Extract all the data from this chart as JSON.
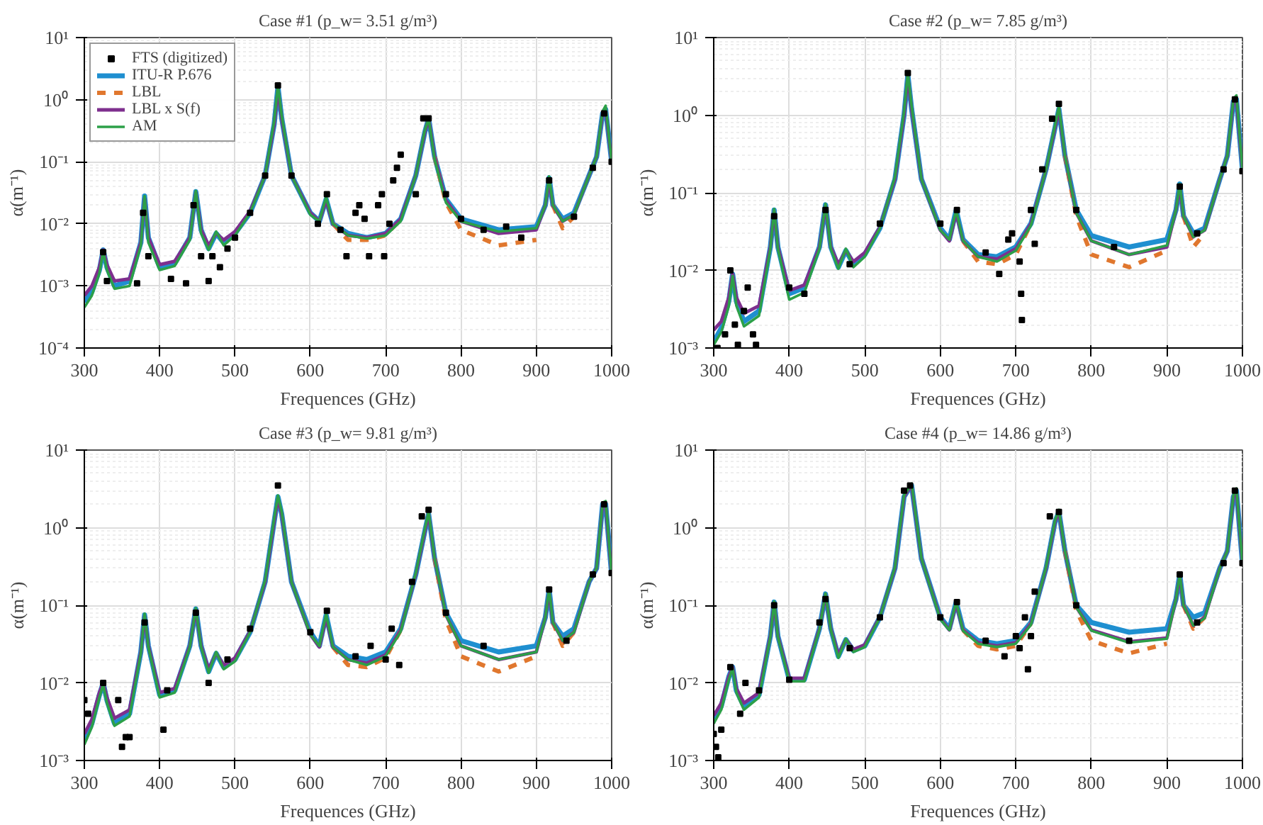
{
  "chart_data": [
    {
      "type": "line",
      "title": "Case #1 (p_w= 3.51 g/m³)",
      "xlabel": "Frequences (GHz)",
      "ylabel": "α(m⁻¹)",
      "log": "y",
      "grid": true,
      "legend": "top left",
      "xlim": [
        300,
        1000
      ],
      "xticks": [
        300,
        400,
        500,
        600,
        700,
        800,
        900,
        1000
      ],
      "ylim": [
        0.0001,
        10
      ],
      "yticks": [
        {
          "value": 0.0001,
          "label": "10⁻⁴"
        },
        {
          "value": 0.001,
          "label": "10⁻³"
        },
        {
          "value": 0.01,
          "label": "10⁻²"
        },
        {
          "value": 0.1,
          "label": "10⁻¹"
        },
        {
          "value": 1,
          "label": "10⁰"
        },
        {
          "value": 10,
          "label": "10¹"
        }
      ],
      "x": [
        300,
        310,
        320,
        325,
        330,
        340,
        360,
        375,
        380,
        385,
        400,
        420,
        440,
        448,
        455,
        465,
        475,
        485,
        500,
        520,
        540,
        552,
        557,
        562,
        575,
        600,
        612,
        621,
        630,
        650,
        675,
        700,
        720,
        740,
        752,
        757,
        765,
        780,
        800,
        850,
        900,
        912,
        917,
        922,
        935,
        950,
        970,
        980,
        988,
        992,
        1000
      ],
      "series": [
        {
          "name": "FTS (digitized)",
          "type": "scatter",
          "marker": "square",
          "color": "#000000",
          "x": [
            325,
            330,
            370,
            378,
            385,
            415,
            435,
            445,
            455,
            465,
            470,
            480,
            490,
            500,
            520,
            540,
            557,
            575,
            610,
            622,
            640,
            648,
            660,
            665,
            672,
            678,
            690,
            695,
            698,
            705,
            710,
            715,
            720,
            740,
            750,
            757,
            780,
            800,
            830,
            860,
            880,
            917,
            950,
            975,
            990,
            1000
          ],
          "values": [
            0.0035,
            0.0012,
            0.0011,
            0.015,
            0.003,
            0.0013,
            0.0011,
            0.02,
            0.003,
            0.0012,
            0.003,
            0.002,
            0.004,
            0.006,
            0.015,
            0.06,
            1.7,
            0.06,
            0.01,
            0.03,
            0.008,
            0.003,
            0.015,
            0.02,
            0.012,
            0.003,
            0.02,
            0.03,
            0.003,
            0.01,
            0.05,
            0.08,
            0.13,
            0.03,
            0.5,
            0.5,
            0.03,
            0.012,
            0.008,
            0.009,
            0.006,
            0.05,
            0.013,
            0.08,
            0.6,
            0.1
          ]
        },
        {
          "name": "ITU-R P.676",
          "color": "#1f8fd0",
          "line_style": "solid",
          "values": [
            0.00055,
            0.0008,
            0.0018,
            0.0038,
            0.002,
            0.001,
            0.0012,
            0.005,
            0.028,
            0.006,
            0.002,
            0.0023,
            0.006,
            0.033,
            0.008,
            0.004,
            0.007,
            0.005,
            0.007,
            0.015,
            0.06,
            0.4,
            1.6,
            0.5,
            0.06,
            0.015,
            0.011,
            0.025,
            0.01,
            0.007,
            0.006,
            0.007,
            0.012,
            0.06,
            0.3,
            0.5,
            0.12,
            0.025,
            0.012,
            0.008,
            0.009,
            0.02,
            0.055,
            0.02,
            0.012,
            0.015,
            0.06,
            0.12,
            0.6,
            0.7,
            0.1
          ]
        },
        {
          "name": "LBL",
          "color": "#e0772e",
          "line_style": "dashed",
          "values": [
            null,
            null,
            null,
            null,
            null,
            null,
            null,
            null,
            null,
            null,
            null,
            null,
            null,
            null,
            null,
            null,
            null,
            null,
            null,
            null,
            null,
            null,
            null,
            null,
            null,
            null,
            null,
            null,
            0.01,
            0.0055,
            0.0055,
            0.0065,
            0.012,
            null,
            null,
            null,
            0.12,
            0.022,
            0.008,
            0.0045,
            0.0055,
            null,
            null,
            0.02,
            0.0085,
            0.013,
            null,
            null,
            null,
            null,
            null
          ]
        },
        {
          "name": "LBL x S(f)",
          "color": "#7e2f8e",
          "line_style": "solid",
          "values": [
            0.0007,
            0.001,
            0.002,
            0.0038,
            0.0022,
            0.0012,
            0.0013,
            0.005,
            0.026,
            0.006,
            0.0022,
            0.0025,
            0.006,
            0.032,
            0.008,
            0.0045,
            0.007,
            0.0055,
            0.0075,
            0.016,
            0.06,
            0.4,
            1.5,
            0.5,
            0.06,
            0.015,
            0.011,
            0.024,
            0.01,
            0.0065,
            0.006,
            0.007,
            0.012,
            0.06,
            0.3,
            0.5,
            0.12,
            0.024,
            0.011,
            0.007,
            0.008,
            0.02,
            0.05,
            0.02,
            0.011,
            0.014,
            0.06,
            0.12,
            0.6,
            0.7,
            0.1
          ]
        },
        {
          "name": "AM",
          "color": "#2ca048",
          "line_style": "solid",
          "values": [
            0.00045,
            0.0007,
            0.0016,
            0.0036,
            0.0018,
            0.0009,
            0.001,
            0.0045,
            0.028,
            0.005,
            0.0018,
            0.0021,
            0.0055,
            0.034,
            0.007,
            0.0038,
            0.0075,
            0.0045,
            0.0065,
            0.015,
            0.06,
            0.45,
            1.7,
            0.55,
            0.06,
            0.014,
            0.011,
            0.027,
            0.01,
            0.0065,
            0.0058,
            0.0065,
            0.011,
            0.06,
            0.32,
            0.5,
            0.11,
            0.022,
            0.011,
            0.0075,
            0.0085,
            0.02,
            0.058,
            0.02,
            0.011,
            0.014,
            0.06,
            0.12,
            0.65,
            0.8,
            0.1
          ]
        }
      ]
    },
    {
      "type": "line",
      "title": "Case #2 (p_w= 7.85 g/m³)",
      "xlabel": "Frequences (GHz)",
      "ylabel": "α(m⁻¹)",
      "log": "y",
      "grid": true,
      "xlim": [
        300,
        1000
      ],
      "xticks": [
        300,
        400,
        500,
        600,
        700,
        800,
        900,
        1000
      ],
      "ylim": [
        0.001,
        10
      ],
      "yticks": [
        {
          "value": 0.001,
          "label": "10⁻³"
        },
        {
          "value": 0.01,
          "label": "10⁻²"
        },
        {
          "value": 0.1,
          "label": "10⁻¹"
        },
        {
          "value": 1,
          "label": "10⁰"
        },
        {
          "value": 10,
          "label": "10¹"
        }
      ],
      "x": [
        300,
        310,
        320,
        325,
        330,
        340,
        360,
        375,
        380,
        385,
        400,
        420,
        440,
        448,
        455,
        465,
        475,
        485,
        500,
        520,
        540,
        552,
        557,
        562,
        575,
        600,
        612,
        621,
        630,
        650,
        675,
        700,
        720,
        740,
        752,
        757,
        765,
        780,
        800,
        850,
        900,
        912,
        917,
        922,
        935,
        950,
        970,
        980,
        988,
        992,
        1000
      ],
      "series": [
        {
          "type": "scatter",
          "marker": "square",
          "color": "#000000",
          "x": [
            305,
            315,
            322,
            328,
            332,
            340,
            345,
            352,
            356,
            380,
            400,
            420,
            448,
            480,
            520,
            557,
            600,
            622,
            660,
            678,
            690,
            695,
            705,
            707,
            708,
            720,
            725,
            735,
            748,
            757,
            780,
            830,
            917,
            940,
            975,
            990,
            1000
          ],
          "values": [
            0.001,
            0.0015,
            0.01,
            0.002,
            0.0011,
            0.003,
            0.006,
            0.0015,
            0.0011,
            0.05,
            0.006,
            0.005,
            0.06,
            0.012,
            0.04,
            3.5,
            0.04,
            0.06,
            0.017,
            0.009,
            0.025,
            0.03,
            0.013,
            0.005,
            0.0023,
            0.06,
            0.022,
            0.2,
            0.9,
            1.4,
            0.06,
            0.02,
            0.12,
            0.03,
            0.2,
            1.6,
            0.19
          ]
        },
        {
          "color": "#1f8fd0",
          "line_style": "solid",
          "values": [
            0.0012,
            0.0018,
            0.004,
            0.009,
            0.004,
            0.0022,
            0.003,
            0.02,
            0.06,
            0.02,
            0.005,
            0.006,
            0.02,
            0.07,
            0.02,
            0.011,
            0.018,
            0.012,
            0.016,
            0.035,
            0.15,
            1,
            3.3,
            1.2,
            0.15,
            0.035,
            0.025,
            0.06,
            0.025,
            0.016,
            0.015,
            0.02,
            0.04,
            0.2,
            0.7,
            1.2,
            0.3,
            0.06,
            0.028,
            0.02,
            0.025,
            0.06,
            0.13,
            0.05,
            0.03,
            0.035,
            0.15,
            0.3,
            1.5,
            1.6,
            0.2
          ]
        },
        {
          "color": "#e0772e",
          "line_style": "dashed",
          "values": [
            null,
            null,
            null,
            null,
            null,
            null,
            null,
            null,
            null,
            null,
            null,
            null,
            null,
            null,
            null,
            null,
            null,
            null,
            null,
            null,
            null,
            null,
            null,
            null,
            null,
            null,
            null,
            null,
            0.024,
            0.013,
            0.012,
            0.016,
            0.04,
            null,
            null,
            null,
            0.3,
            0.05,
            0.016,
            0.011,
            0.018,
            null,
            null,
            0.05,
            0.02,
            0.03,
            null,
            null,
            null,
            null,
            null
          ]
        },
        {
          "color": "#7e2f8e",
          "line_style": "solid",
          "values": [
            0.0017,
            0.0022,
            0.0045,
            0.009,
            0.0045,
            0.0028,
            0.0035,
            0.02,
            0.058,
            0.02,
            0.0055,
            0.0065,
            0.02,
            0.068,
            0.02,
            0.012,
            0.018,
            0.013,
            0.017,
            0.036,
            0.15,
            1,
            3.2,
            1.2,
            0.15,
            0.033,
            0.024,
            0.055,
            0.024,
            0.015,
            0.014,
            0.019,
            0.04,
            0.2,
            0.7,
            1.2,
            0.3,
            0.055,
            0.024,
            0.016,
            0.02,
            0.06,
            0.12,
            0.05,
            0.027,
            0.033,
            0.15,
            0.3,
            1.5,
            1.6,
            0.2
          ]
        },
        {
          "color": "#2ca048",
          "line_style": "solid",
          "values": [
            0.0011,
            0.0016,
            0.0035,
            0.0085,
            0.0035,
            0.0019,
            0.0026,
            0.019,
            0.062,
            0.019,
            0.0042,
            0.0052,
            0.019,
            0.072,
            0.019,
            0.0105,
            0.019,
            0.011,
            0.015,
            0.035,
            0.16,
            1.1,
            3.5,
            1.3,
            0.15,
            0.033,
            0.025,
            0.06,
            0.024,
            0.015,
            0.013,
            0.018,
            0.038,
            0.2,
            0.75,
            1.3,
            0.3,
            0.055,
            0.024,
            0.016,
            0.021,
            0.06,
            0.13,
            0.05,
            0.027,
            0.033,
            0.15,
            0.3,
            1.6,
            1.8,
            0.2
          ]
        }
      ]
    },
    {
      "type": "line",
      "title": "Case #3 (p_w= 9.81 g/m³)",
      "xlabel": "Frequences (GHz)",
      "ylabel": "α(m⁻¹)",
      "log": "y",
      "grid": true,
      "xlim": [
        300,
        1000
      ],
      "xticks": [
        300,
        400,
        500,
        600,
        700,
        800,
        900,
        1000
      ],
      "ylim": [
        0.001,
        10
      ],
      "yticks": [
        {
          "value": 0.001,
          "label": "10⁻³"
        },
        {
          "value": 0.01,
          "label": "10⁻²"
        },
        {
          "value": 0.1,
          "label": "10⁻¹"
        },
        {
          "value": 1,
          "label": "10⁰"
        },
        {
          "value": 10,
          "label": "10¹"
        }
      ],
      "x": [
        300,
        310,
        320,
        325,
        330,
        340,
        360,
        375,
        380,
        385,
        400,
        420,
        440,
        448,
        455,
        465,
        475,
        485,
        500,
        520,
        540,
        552,
        557,
        562,
        575,
        600,
        612,
        621,
        630,
        650,
        675,
        700,
        720,
        740,
        752,
        757,
        765,
        780,
        800,
        850,
        900,
        912,
        917,
        922,
        935,
        950,
        970,
        980,
        988,
        992,
        1000
      ],
      "series": [
        {
          "type": "scatter",
          "marker": "square",
          "color": "#000000",
          "x": [
            300,
            305,
            325,
            345,
            350,
            355,
            360,
            380,
            405,
            410,
            448,
            465,
            490,
            520,
            557,
            600,
            622,
            660,
            680,
            700,
            708,
            718,
            735,
            748,
            757,
            780,
            830,
            917,
            940,
            975,
            990,
            1000
          ],
          "values": [
            0.006,
            0.004,
            0.01,
            0.006,
            0.0015,
            0.002,
            0.002,
            0.06,
            0.0025,
            0.008,
            0.08,
            0.01,
            0.02,
            0.05,
            3.5,
            0.045,
            0.085,
            0.022,
            0.03,
            0.02,
            0.05,
            0.017,
            0.2,
            1.4,
            1.7,
            0.08,
            0.03,
            0.16,
            0.035,
            0.25,
            2,
            0.26
          ]
        },
        {
          "color": "#1f8fd0",
          "line_style": "solid",
          "values": [
            0.0018,
            0.003,
            0.007,
            0.01,
            0.006,
            0.003,
            0.004,
            0.025,
            0.075,
            0.03,
            0.007,
            0.008,
            0.03,
            0.09,
            0.03,
            0.014,
            0.024,
            0.016,
            0.02,
            0.045,
            0.2,
            1.2,
            2.5,
            1.5,
            0.2,
            0.045,
            0.03,
            0.075,
            0.03,
            0.022,
            0.02,
            0.025,
            0.05,
            0.25,
            0.9,
            1.5,
            0.4,
            0.08,
            0.035,
            0.025,
            0.03,
            0.07,
            0.16,
            0.06,
            0.04,
            0.05,
            0.2,
            0.3,
            2,
            2,
            0.25
          ]
        },
        {
          "color": "#e0772e",
          "line_style": "dashed",
          "values": [
            null,
            null,
            null,
            null,
            null,
            null,
            null,
            null,
            null,
            null,
            null,
            null,
            null,
            null,
            null,
            null,
            null,
            null,
            null,
            null,
            null,
            null,
            null,
            null,
            null,
            null,
            null,
            null,
            0.029,
            0.017,
            0.016,
            0.021,
            0.048,
            null,
            null,
            null,
            0.4,
            0.065,
            0.022,
            0.014,
            0.022,
            null,
            null,
            0.06,
            0.03,
            0.045,
            null,
            null,
            null,
            null,
            null
          ]
        },
        {
          "color": "#7e2f8e",
          "line_style": "solid",
          "values": [
            0.0022,
            0.0034,
            0.0075,
            0.01,
            0.0065,
            0.0035,
            0.0045,
            0.025,
            0.073,
            0.03,
            0.0075,
            0.0085,
            0.03,
            0.088,
            0.03,
            0.015,
            0.024,
            0.017,
            0.021,
            0.046,
            0.2,
            1.2,
            2.4,
            1.5,
            0.2,
            0.042,
            0.029,
            0.07,
            0.029,
            0.02,
            0.018,
            0.023,
            0.048,
            0.25,
            0.9,
            1.5,
            0.4,
            0.075,
            0.03,
            0.02,
            0.025,
            0.07,
            0.15,
            0.06,
            0.035,
            0.045,
            0.2,
            0.3,
            2,
            2,
            0.25
          ]
        },
        {
          "color": "#2ca048",
          "line_style": "solid",
          "values": [
            0.0016,
            0.0027,
            0.0065,
            0.0095,
            0.0055,
            0.0028,
            0.0037,
            0.024,
            0.078,
            0.029,
            0.0065,
            0.0075,
            0.029,
            0.092,
            0.029,
            0.0135,
            0.025,
            0.015,
            0.019,
            0.045,
            0.21,
            1.3,
            2.6,
            1.6,
            0.2,
            0.042,
            0.03,
            0.077,
            0.029,
            0.02,
            0.017,
            0.022,
            0.046,
            0.26,
            0.95,
            1.6,
            0.4,
            0.075,
            0.03,
            0.02,
            0.025,
            0.07,
            0.16,
            0.06,
            0.035,
            0.045,
            0.2,
            0.3,
            2.1,
            2.2,
            0.25
          ]
        }
      ]
    },
    {
      "type": "line",
      "title": "Case #4 (p_w= 14.86 g/m³)",
      "xlabel": "Frequences (GHz)",
      "ylabel": "α(m⁻¹)",
      "log": "y",
      "grid": true,
      "xlim": [
        300,
        1000
      ],
      "xticks": [
        300,
        400,
        500,
        600,
        700,
        800,
        900,
        1000
      ],
      "ylim": [
        0.001,
        10
      ],
      "yticks": [
        {
          "value": 0.001,
          "label": "10⁻³"
        },
        {
          "value": 0.01,
          "label": "10⁻²"
        },
        {
          "value": 0.1,
          "label": "10⁻¹"
        },
        {
          "value": 1,
          "label": "10⁰"
        },
        {
          "value": 10,
          "label": "10¹"
        }
      ],
      "x": [
        300,
        310,
        320,
        325,
        330,
        340,
        360,
        375,
        380,
        385,
        400,
        420,
        440,
        448,
        455,
        465,
        475,
        485,
        500,
        520,
        540,
        552,
        557,
        562,
        575,
        600,
        612,
        621,
        630,
        650,
        675,
        700,
        720,
        740,
        752,
        757,
        765,
        780,
        800,
        850,
        900,
        912,
        917,
        922,
        935,
        950,
        970,
        980,
        988,
        992,
        1000
      ],
      "series": [
        {
          "type": "scatter",
          "marker": "square",
          "color": "#000000",
          "x": [
            300,
            303,
            306,
            310,
            322,
            335,
            342,
            360,
            380,
            400,
            440,
            448,
            480,
            520,
            552,
            560,
            600,
            622,
            660,
            685,
            700,
            705,
            712,
            716,
            720,
            725,
            745,
            757,
            780,
            850,
            917,
            940,
            975,
            990,
            1000
          ],
          "values": [
            0.0022,
            0.0015,
            0.0011,
            0.0025,
            0.016,
            0.004,
            0.01,
            0.008,
            0.1,
            0.011,
            0.06,
            0.12,
            0.028,
            0.07,
            3,
            3.5,
            0.07,
            0.11,
            0.035,
            0.022,
            0.04,
            0.028,
            0.07,
            0.015,
            0.04,
            0.15,
            1.4,
            1.6,
            0.1,
            0.035,
            0.25,
            0.06,
            0.35,
            3,
            0.35
          ]
        },
        {
          "color": "#1f8fd0",
          "line_style": "solid",
          "values": [
            0.0035,
            0.005,
            0.012,
            0.016,
            0.008,
            0.005,
            0.007,
            0.04,
            0.11,
            0.04,
            0.011,
            0.011,
            0.05,
            0.14,
            0.05,
            0.022,
            0.036,
            0.026,
            0.03,
            0.07,
            0.3,
            2.5,
            3,
            3.5,
            0.4,
            0.07,
            0.05,
            0.11,
            0.05,
            0.035,
            0.032,
            0.035,
            0.06,
            0.3,
            1.2,
            1.6,
            0.5,
            0.1,
            0.06,
            0.045,
            0.05,
            0.12,
            0.25,
            0.1,
            0.07,
            0.08,
            0.3,
            0.5,
            2.5,
            3,
            0.35
          ]
        },
        {
          "color": "#e0772e",
          "line_style": "dashed",
          "values": [
            null,
            null,
            null,
            null,
            null,
            null,
            null,
            null,
            null,
            null,
            null,
            null,
            null,
            null,
            null,
            null,
            null,
            null,
            null,
            null,
            null,
            null,
            null,
            null,
            null,
            null,
            null,
            null,
            0.048,
            0.03,
            0.027,
            0.03,
            0.058,
            null,
            null,
            null,
            0.5,
            0.085,
            0.035,
            0.024,
            0.032,
            null,
            null,
            0.1,
            0.05,
            0.07,
            null,
            null,
            null,
            null,
            null
          ]
        },
        {
          "color": "#7e2f8e",
          "line_style": "solid",
          "values": [
            0.0038,
            0.0055,
            0.012,
            0.016,
            0.0085,
            0.0055,
            0.0075,
            0.04,
            0.108,
            0.04,
            0.0115,
            0.0115,
            0.05,
            0.138,
            0.05,
            0.023,
            0.036,
            0.027,
            0.031,
            0.071,
            0.3,
            2.5,
            3,
            3.5,
            0.4,
            0.068,
            0.048,
            0.105,
            0.048,
            0.033,
            0.03,
            0.033,
            0.058,
            0.3,
            1.2,
            1.6,
            0.5,
            0.095,
            0.048,
            0.034,
            0.038,
            0.12,
            0.24,
            0.1,
            0.055,
            0.07,
            0.3,
            0.5,
            2.5,
            3,
            0.35
          ]
        },
        {
          "color": "#2ca048",
          "line_style": "solid",
          "values": [
            0.003,
            0.0045,
            0.011,
            0.0155,
            0.0075,
            0.0045,
            0.0065,
            0.039,
            0.112,
            0.039,
            0.0105,
            0.0105,
            0.049,
            0.142,
            0.049,
            0.021,
            0.037,
            0.025,
            0.029,
            0.07,
            0.31,
            2.6,
            3.1,
            3.7,
            0.4,
            0.066,
            0.048,
            0.112,
            0.047,
            0.032,
            0.029,
            0.032,
            0.056,
            0.31,
            1.25,
            1.7,
            0.5,
            0.095,
            0.047,
            0.033,
            0.037,
            0.12,
            0.25,
            0.1,
            0.055,
            0.068,
            0.3,
            0.5,
            2.6,
            3.2,
            0.35
          ]
        }
      ]
    }
  ]
}
